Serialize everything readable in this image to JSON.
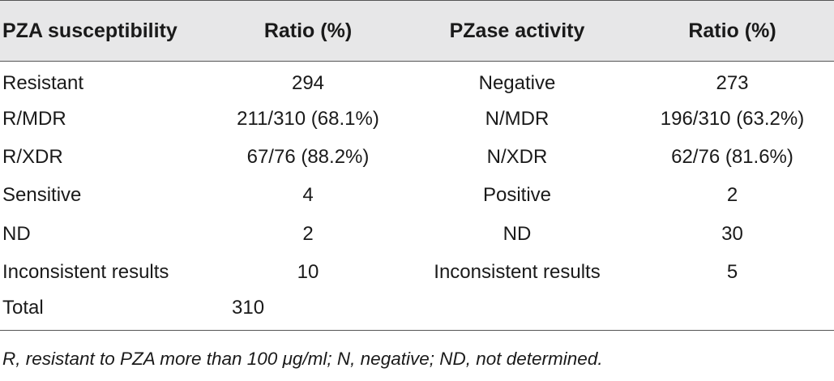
{
  "headers": [
    "PZA susceptibility",
    "Ratio (%)",
    "PZase activity",
    "Ratio (%)"
  ],
  "rows": [
    [
      "Resistant",
      "294",
      "Negative",
      "273"
    ],
    [
      "R/MDR",
      "211/310 (68.1%)",
      "N/MDR",
      "196/310 (63.2%)"
    ],
    [
      "R/XDR",
      "67/76 (88.2%)",
      "N/XDR",
      "62/76 (81.6%)"
    ],
    [
      "Sensitive",
      "4",
      "Positive",
      "2"
    ],
    [
      "ND",
      "2",
      "ND",
      "30"
    ],
    [
      "Inconsistent results",
      "10",
      "Inconsistent results",
      "5"
    ],
    [
      "Total",
      "310",
      "",
      ""
    ]
  ],
  "footnote": "R, resistant to PZA more than 100 μg/ml; N, negative; ND, not determined.",
  "colors": {
    "header_bg": "#e7e7e8",
    "rule": "#555555",
    "text": "#1a1a1a"
  }
}
